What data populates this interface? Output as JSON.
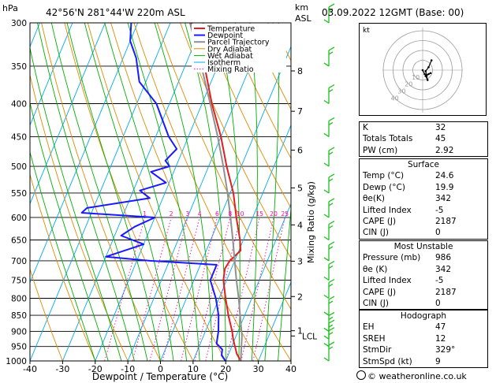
{
  "header": {
    "location": "42°56'N  281°44'W  220m  ASL",
    "datetime": "03.09.2022  12GMT  (Base: 00)",
    "hpa_label": "hPa",
    "km_label": "km",
    "asl_label": "ASL"
  },
  "colors": {
    "temperature": "#e02020",
    "dewpoint": "#1a1aff",
    "parcel": "#909090",
    "dry_adiabat": "#e08a00",
    "wet_adiabat": "#00b000",
    "isotherm": "#00aaee",
    "mixing_ratio": "#ff00aa"
  },
  "chart_data": {
    "type": "line",
    "title": "Skew-T log-P diagram",
    "xlabel": "Dewpoint / Temperature (°C)",
    "ylabel": "hPa",
    "right_axis_label": "Mixing Ratio (g/kg)",
    "xlim": [
      -40,
      40
    ],
    "ylim": [
      1000,
      300
    ],
    "x_ticks": [
      -40,
      -30,
      -20,
      -10,
      0,
      10,
      20,
      30,
      40
    ],
    "x_tick_labels": [
      "-40",
      "-30",
      "-20",
      "-10",
      "0",
      "10",
      "20",
      "30",
      "40"
    ],
    "pressure_levels": [
      300,
      350,
      400,
      450,
      500,
      550,
      600,
      650,
      700,
      750,
      800,
      850,
      900,
      950,
      1000
    ],
    "pressure_labels": [
      "300",
      "350",
      "400",
      "450",
      "500",
      "550",
      "600",
      "650",
      "700",
      "750",
      "800",
      "850",
      "900",
      "950",
      "1000"
    ],
    "km_ticks": [
      {
        "label": "8",
        "p": 356
      },
      {
        "label": "7",
        "p": 411
      },
      {
        "label": "6",
        "p": 472
      },
      {
        "label": "5",
        "p": 540
      },
      {
        "label": "4",
        "p": 616
      },
      {
        "label": "3",
        "p": 701
      },
      {
        "label": "2",
        "p": 795
      },
      {
        "label": "1",
        "p": 898
      }
    ],
    "lcl": {
      "label": "LCL",
      "p": 915
    },
    "mixing_ratio_labels": [
      "1",
      "2",
      "3",
      "4",
      "6",
      "8",
      "10",
      "15",
      "20",
      "25"
    ],
    "mixing_ratio_values": [
      1,
      2,
      3,
      4,
      6,
      8,
      10,
      15,
      20,
      25
    ],
    "legend": {
      "position": "top-left",
      "entries": [
        "Temperature",
        "Dewpoint",
        "Parcel Trajectory",
        "Dry Adiabat",
        "Wet Adiabat",
        "Isotherm",
        "Mixing Ratio"
      ]
    },
    "series": [
      {
        "name": "Temperature",
        "points": [
          [
            1000,
            24.6
          ],
          [
            975,
            22.5
          ],
          [
            950,
            21.0
          ],
          [
            925,
            19.5
          ],
          [
            900,
            18.2
          ],
          [
            850,
            15.0
          ],
          [
            800,
            12.0
          ],
          [
            750,
            9.0
          ],
          [
            720,
            8.0
          ],
          [
            700,
            8.5
          ],
          [
            675,
            10.5
          ],
          [
            650,
            9.0
          ],
          [
            600,
            5.0
          ],
          [
            550,
            1.0
          ],
          [
            500,
            -4.5
          ],
          [
            450,
            -10.0
          ],
          [
            400,
            -17.0
          ],
          [
            350,
            -24.0
          ],
          [
            300,
            -33.5
          ]
        ]
      },
      {
        "name": "Dewpoint",
        "points": [
          [
            1000,
            19.9
          ],
          [
            980,
            18.0
          ],
          [
            960,
            17.5
          ],
          [
            940,
            15.0
          ],
          [
            920,
            14.5
          ],
          [
            900,
            14.0
          ],
          [
            850,
            12.0
          ],
          [
            800,
            9.0
          ],
          [
            750,
            5.0
          ],
          [
            710,
            5.0
          ],
          [
            700,
            -16.0
          ],
          [
            690,
            -30.0
          ],
          [
            660,
            -20.0
          ],
          [
            640,
            -28.0
          ],
          [
            620,
            -25.0
          ],
          [
            600,
            -20.0
          ],
          [
            590,
            -43.0
          ],
          [
            580,
            -42.0
          ],
          [
            560,
            -24.0
          ],
          [
            545,
            -28.0
          ],
          [
            530,
            -21.0
          ],
          [
            510,
            -27.0
          ],
          [
            500,
            -22.0
          ],
          [
            490,
            -24.0
          ],
          [
            470,
            -22.0
          ],
          [
            450,
            -26.0
          ],
          [
            400,
            -34.0
          ],
          [
            370,
            -42.0
          ],
          [
            340,
            -46.0
          ],
          [
            320,
            -50.0
          ],
          [
            300,
            -52.0
          ]
        ]
      },
      {
        "name": "Parcel Trajectory",
        "points": [
          [
            1000,
            24.6
          ],
          [
            915,
            21.8
          ],
          [
            850,
            18.6
          ],
          [
            800,
            16.0
          ],
          [
            750,
            13.0
          ],
          [
            700,
            10.0
          ],
          [
            650,
            6.8
          ],
          [
            600,
            3.2
          ],
          [
            550,
            -0.8
          ],
          [
            500,
            -5.5
          ],
          [
            450,
            -11.0
          ],
          [
            400,
            -17.5
          ],
          [
            350,
            -25.0
          ],
          [
            300,
            -34.0
          ]
        ]
      }
    ],
    "wind_barbs_pressure": [
      1000,
      950,
      925,
      900,
      850,
      800,
      750,
      700,
      650,
      600,
      550,
      500,
      450,
      400,
      350,
      300
    ],
    "hodograph": {
      "ring_labels": [
        "10",
        "20",
        "30",
        "40"
      ],
      "unit_label": "kt",
      "points": [
        [
          0,
          0
        ],
        [
          2,
          -4
        ],
        [
          4,
          -6
        ],
        [
          5,
          -10
        ],
        [
          3,
          -6
        ],
        [
          6,
          -4
        ],
        [
          8,
          -3
        ],
        [
          4,
          -5
        ],
        [
          3,
          -1
        ],
        [
          6,
          3
        ],
        [
          9,
          10
        ]
      ]
    }
  },
  "indices": {
    "k": {
      "label": "K",
      "value": "32"
    },
    "totals_totals": {
      "label": "Totals Totals",
      "value": "45"
    },
    "pw": {
      "label": "PW (cm)",
      "value": "2.92"
    }
  },
  "surface": {
    "title": "Surface",
    "temp": {
      "label": "Temp (°C)",
      "value": "24.6"
    },
    "dewp": {
      "label": "Dewp (°C)",
      "value": "19.9"
    },
    "theta_e": {
      "label": "θe(K)",
      "value": "342"
    },
    "lifted_index": {
      "label": "Lifted Index",
      "value": "-5"
    },
    "cape": {
      "label": "CAPE (J)",
      "value": "2187"
    },
    "cin": {
      "label": "CIN (J)",
      "value": "0"
    }
  },
  "most_unstable": {
    "title": "Most Unstable",
    "pressure": {
      "label": "Pressure (mb)",
      "value": "986"
    },
    "theta_e": {
      "label": "θe (K)",
      "value": "342"
    },
    "lifted_index": {
      "label": "Lifted Index",
      "value": "-5"
    },
    "cape": {
      "label": "CAPE (J)",
      "value": "2187"
    },
    "cin": {
      "label": "CIN (J)",
      "value": "0"
    }
  },
  "hodograph_table": {
    "title": "Hodograph",
    "eh": {
      "label": "EH",
      "value": "47"
    },
    "sreh": {
      "label": "SREH",
      "value": "12"
    },
    "stmdir": {
      "label": "StmDir",
      "value": "329°"
    },
    "stmspd": {
      "label": "StmSpd (kt)",
      "value": "9"
    }
  },
  "credit": "© weatheronline.co.uk"
}
